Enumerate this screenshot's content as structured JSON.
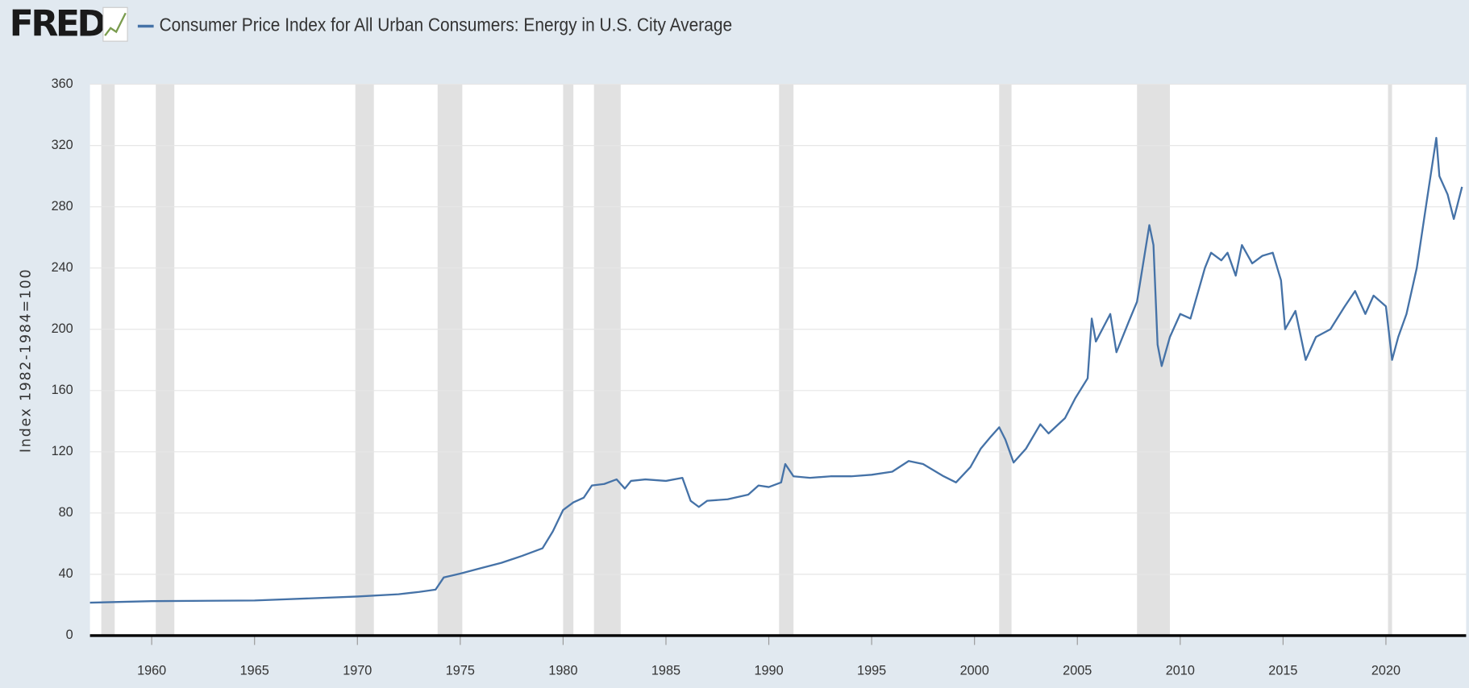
{
  "logo": "FRED",
  "chart_data": {
    "type": "line",
    "ylabel": "Index 1982-1984=100",
    "x": [
      1957,
      1960,
      1965,
      1970,
      1972,
      1973,
      1973.8,
      1974.2,
      1975,
      1976,
      1977,
      1978,
      1979,
      1979.5,
      1980,
      1980.5,
      1981,
      1981.4,
      1982,
      1982.6,
      1983,
      1983.3,
      1984,
      1985,
      1985.8,
      1986.2,
      1986.6,
      1987,
      1988,
      1989,
      1989.5,
      1990,
      1990.6,
      1990.8,
      1991.2,
      1992,
      1993,
      1994,
      1995,
      1996,
      1996.8,
      1997.5,
      1998.5,
      1999.1,
      1999.8,
      2000.3,
      2000.8,
      2001.2,
      2001.5,
      2001.9,
      2002.5,
      2003.2,
      2003.6,
      2004.4,
      2004.9,
      2005.5,
      2005.7,
      2005.9,
      2006.6,
      2006.9,
      2007.5,
      2007.9,
      2008.5,
      2008.7,
      2008.9,
      2009.1,
      2009.5,
      2010,
      2010.5,
      2011.2,
      2011.5,
      2012,
      2012.3,
      2012.7,
      2013,
      2013.5,
      2014,
      2014.5,
      2014.9,
      2015.1,
      2015.6,
      2016.1,
      2016.6,
      2017.3,
      2018,
      2018.5,
      2019,
      2019.4,
      2020,
      2020.3,
      2020.6,
      2021,
      2021.5,
      2022,
      2022.45,
      2022.6,
      2023,
      2023.3,
      2023.7
    ],
    "series": [
      {
        "name": "Consumer Price Index for All Urban Consumers: Energy in U.S. City Average",
        "color": "#4572a7",
        "values": [
          21.5,
          22.5,
          22.9,
          25.5,
          27,
          28.5,
          30,
          38,
          40.5,
          44,
          47.5,
          52,
          57,
          68,
          82,
          87,
          90,
          98,
          99,
          102,
          96,
          101,
          102,
          101,
          103,
          88,
          84,
          88,
          89,
          92,
          98,
          97,
          100,
          112,
          104,
          103,
          104,
          104,
          105,
          107,
          114,
          112,
          104,
          100,
          110,
          122,
          130,
          136,
          128,
          113,
          122,
          138,
          132,
          142,
          155,
          168,
          207,
          192,
          210,
          185,
          205,
          218,
          268,
          255,
          190,
          176,
          195,
          210,
          207,
          240,
          250,
          245,
          250,
          235,
          255,
          243,
          248,
          250,
          232,
          200,
          212,
          180,
          195,
          200,
          215,
          225,
          210,
          222,
          215,
          180,
          195,
          210,
          240,
          285,
          325,
          300,
          288,
          272,
          293
        ]
      }
    ],
    "recessions": [
      [
        1957.55,
        1958.2
      ],
      [
        1960.2,
        1961.1
      ],
      [
        1969.9,
        1970.8
      ],
      [
        1973.9,
        1975.1
      ],
      [
        1980.0,
        1980.5
      ],
      [
        1981.5,
        1982.8
      ],
      [
        1990.5,
        1991.2
      ],
      [
        2001.2,
        2001.8
      ],
      [
        2007.9,
        2009.5
      ],
      [
        2020.1,
        2020.3
      ]
    ],
    "xlim": [
      1957,
      2023.9
    ],
    "xticks": [
      1960,
      1965,
      1970,
      1975,
      1980,
      1985,
      1990,
      1995,
      2000,
      2005,
      2010,
      2015,
      2020
    ],
    "ylim": [
      0,
      360
    ],
    "yticks": [
      0,
      40,
      80,
      120,
      160,
      200,
      240,
      280,
      320,
      360
    ],
    "grid": true
  }
}
